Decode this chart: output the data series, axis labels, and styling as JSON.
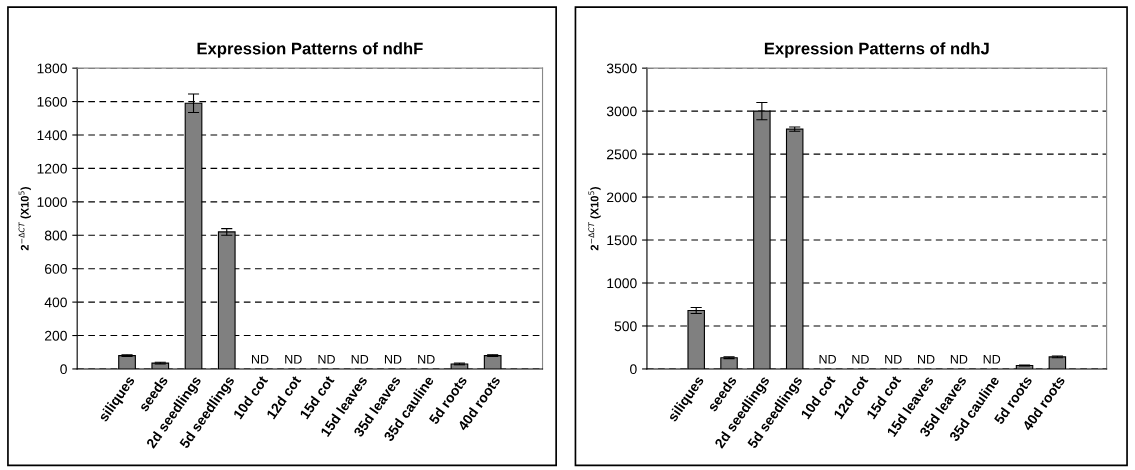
{
  "chart_data": [
    {
      "type": "bar",
      "title": "Expression Patterns of ndhF",
      "ylabel": "2$^{−ΔCT}$ (X10$^{5}$)",
      "categories": [
        null,
        "siliques",
        "seeds",
        "2d seedlings",
        "5d seedlings",
        "10d cot",
        "12d cot",
        "15d cot",
        "15d leaves",
        "35d leaves",
        "35d cauline",
        "5d roots",
        "40d roots",
        null
      ],
      "values": [
        null,
        80,
        35,
        1590,
        820,
        null,
        null,
        null,
        null,
        null,
        null,
        30,
        80,
        null
      ],
      "errors": [
        null,
        5,
        5,
        55,
        20,
        null,
        null,
        null,
        null,
        null,
        null,
        5,
        5,
        null
      ],
      "color": "#808080",
      "ylim": [
        0,
        1800
      ],
      "yticks": [
        0,
        200,
        400,
        600,
        800,
        1000,
        1200,
        1400,
        1600,
        1800
      ],
      "grid": "y",
      "annotations": [
        "ND",
        "ND",
        "ND",
        "ND",
        "ND",
        "ND"
      ]
    },
    {
      "type": "bar",
      "title": "Expression Patterns of ndhJ",
      "ylabel": "2$^{−ΔCT}$ (X10$^{5}$)",
      "categories": [
        null,
        "siliques",
        "seeds",
        "2d seedlings",
        "5d seedlings",
        "10d cot",
        "12d cot",
        "15d cot",
        "15d leaves",
        "35d leaves",
        "35d cauline",
        "5d roots",
        "40d roots",
        null
      ],
      "values": [
        null,
        680,
        130,
        3000,
        2790,
        null,
        null,
        null,
        null,
        null,
        null,
        40,
        140,
        null
      ],
      "errors": [
        null,
        35,
        10,
        100,
        25,
        null,
        null,
        null,
        null,
        null,
        null,
        5,
        10,
        null
      ],
      "color": "#808080",
      "ylim": [
        0,
        3500
      ],
      "yticks": [
        0,
        500,
        1000,
        1500,
        2000,
        2500,
        3000,
        3500
      ],
      "grid": "y",
      "annotations": [
        "ND",
        "ND",
        "ND",
        "ND",
        "ND",
        "ND"
      ]
    }
  ]
}
